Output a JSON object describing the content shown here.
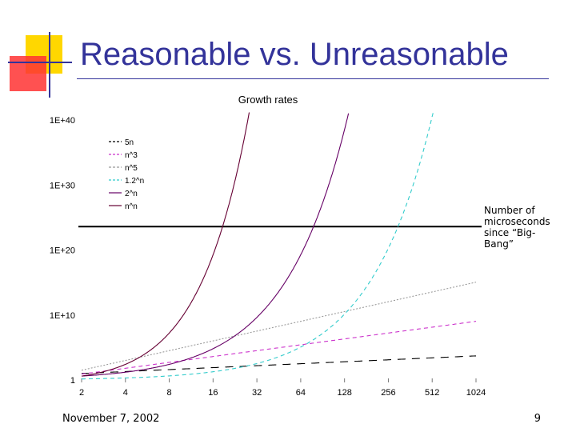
{
  "slide": {
    "title": "Reasonable vs. Unreasonable",
    "date": "November 7, 2002",
    "page_number": "9",
    "accent_color": "#33339a",
    "logo_colors": [
      "#ffd700",
      "#ff3333",
      "#33339a"
    ]
  },
  "chart_data": {
    "type": "line",
    "title": "Growth rates",
    "xlabel": "",
    "ylabel": "",
    "x_scale": "log2",
    "y_scale": "log10",
    "x": [
      2,
      4,
      8,
      16,
      32,
      64,
      128,
      256,
      512,
      1024
    ],
    "x_tick_labels": [
      "2",
      "4",
      "8",
      "16",
      "32",
      "64",
      "128",
      "256",
      "512",
      "1024"
    ],
    "y_tick_labels": [
      "1",
      "1E+10",
      "1E+20",
      "1E+30",
      "1E+40"
    ],
    "ylim": [
      1,
      1e+40
    ],
    "series": [
      {
        "name": "5n",
        "color": "#000000",
        "dash": "10,8",
        "formula": "5n"
      },
      {
        "name": "n^3",
        "color": "#cc33cc",
        "dash": "5,4",
        "formula": "n^3"
      },
      {
        "name": "n^5",
        "color": "#999999",
        "dash": "2,2",
        "formula": "n^5"
      },
      {
        "name": "1.2^n",
        "color": "#33cccc",
        "dash": "5,4",
        "formula": "1.2^n"
      },
      {
        "name": "2^n",
        "color": "#660066",
        "dash": "",
        "formula": "2^n"
      },
      {
        "name": "n^n",
        "color": "#660033",
        "dash": "",
        "formula": "n^n"
      }
    ],
    "reference_line": {
      "value": 4e+23,
      "label": "Number of microseconds since “Big-Bang”"
    },
    "legend_position": "top-left"
  }
}
